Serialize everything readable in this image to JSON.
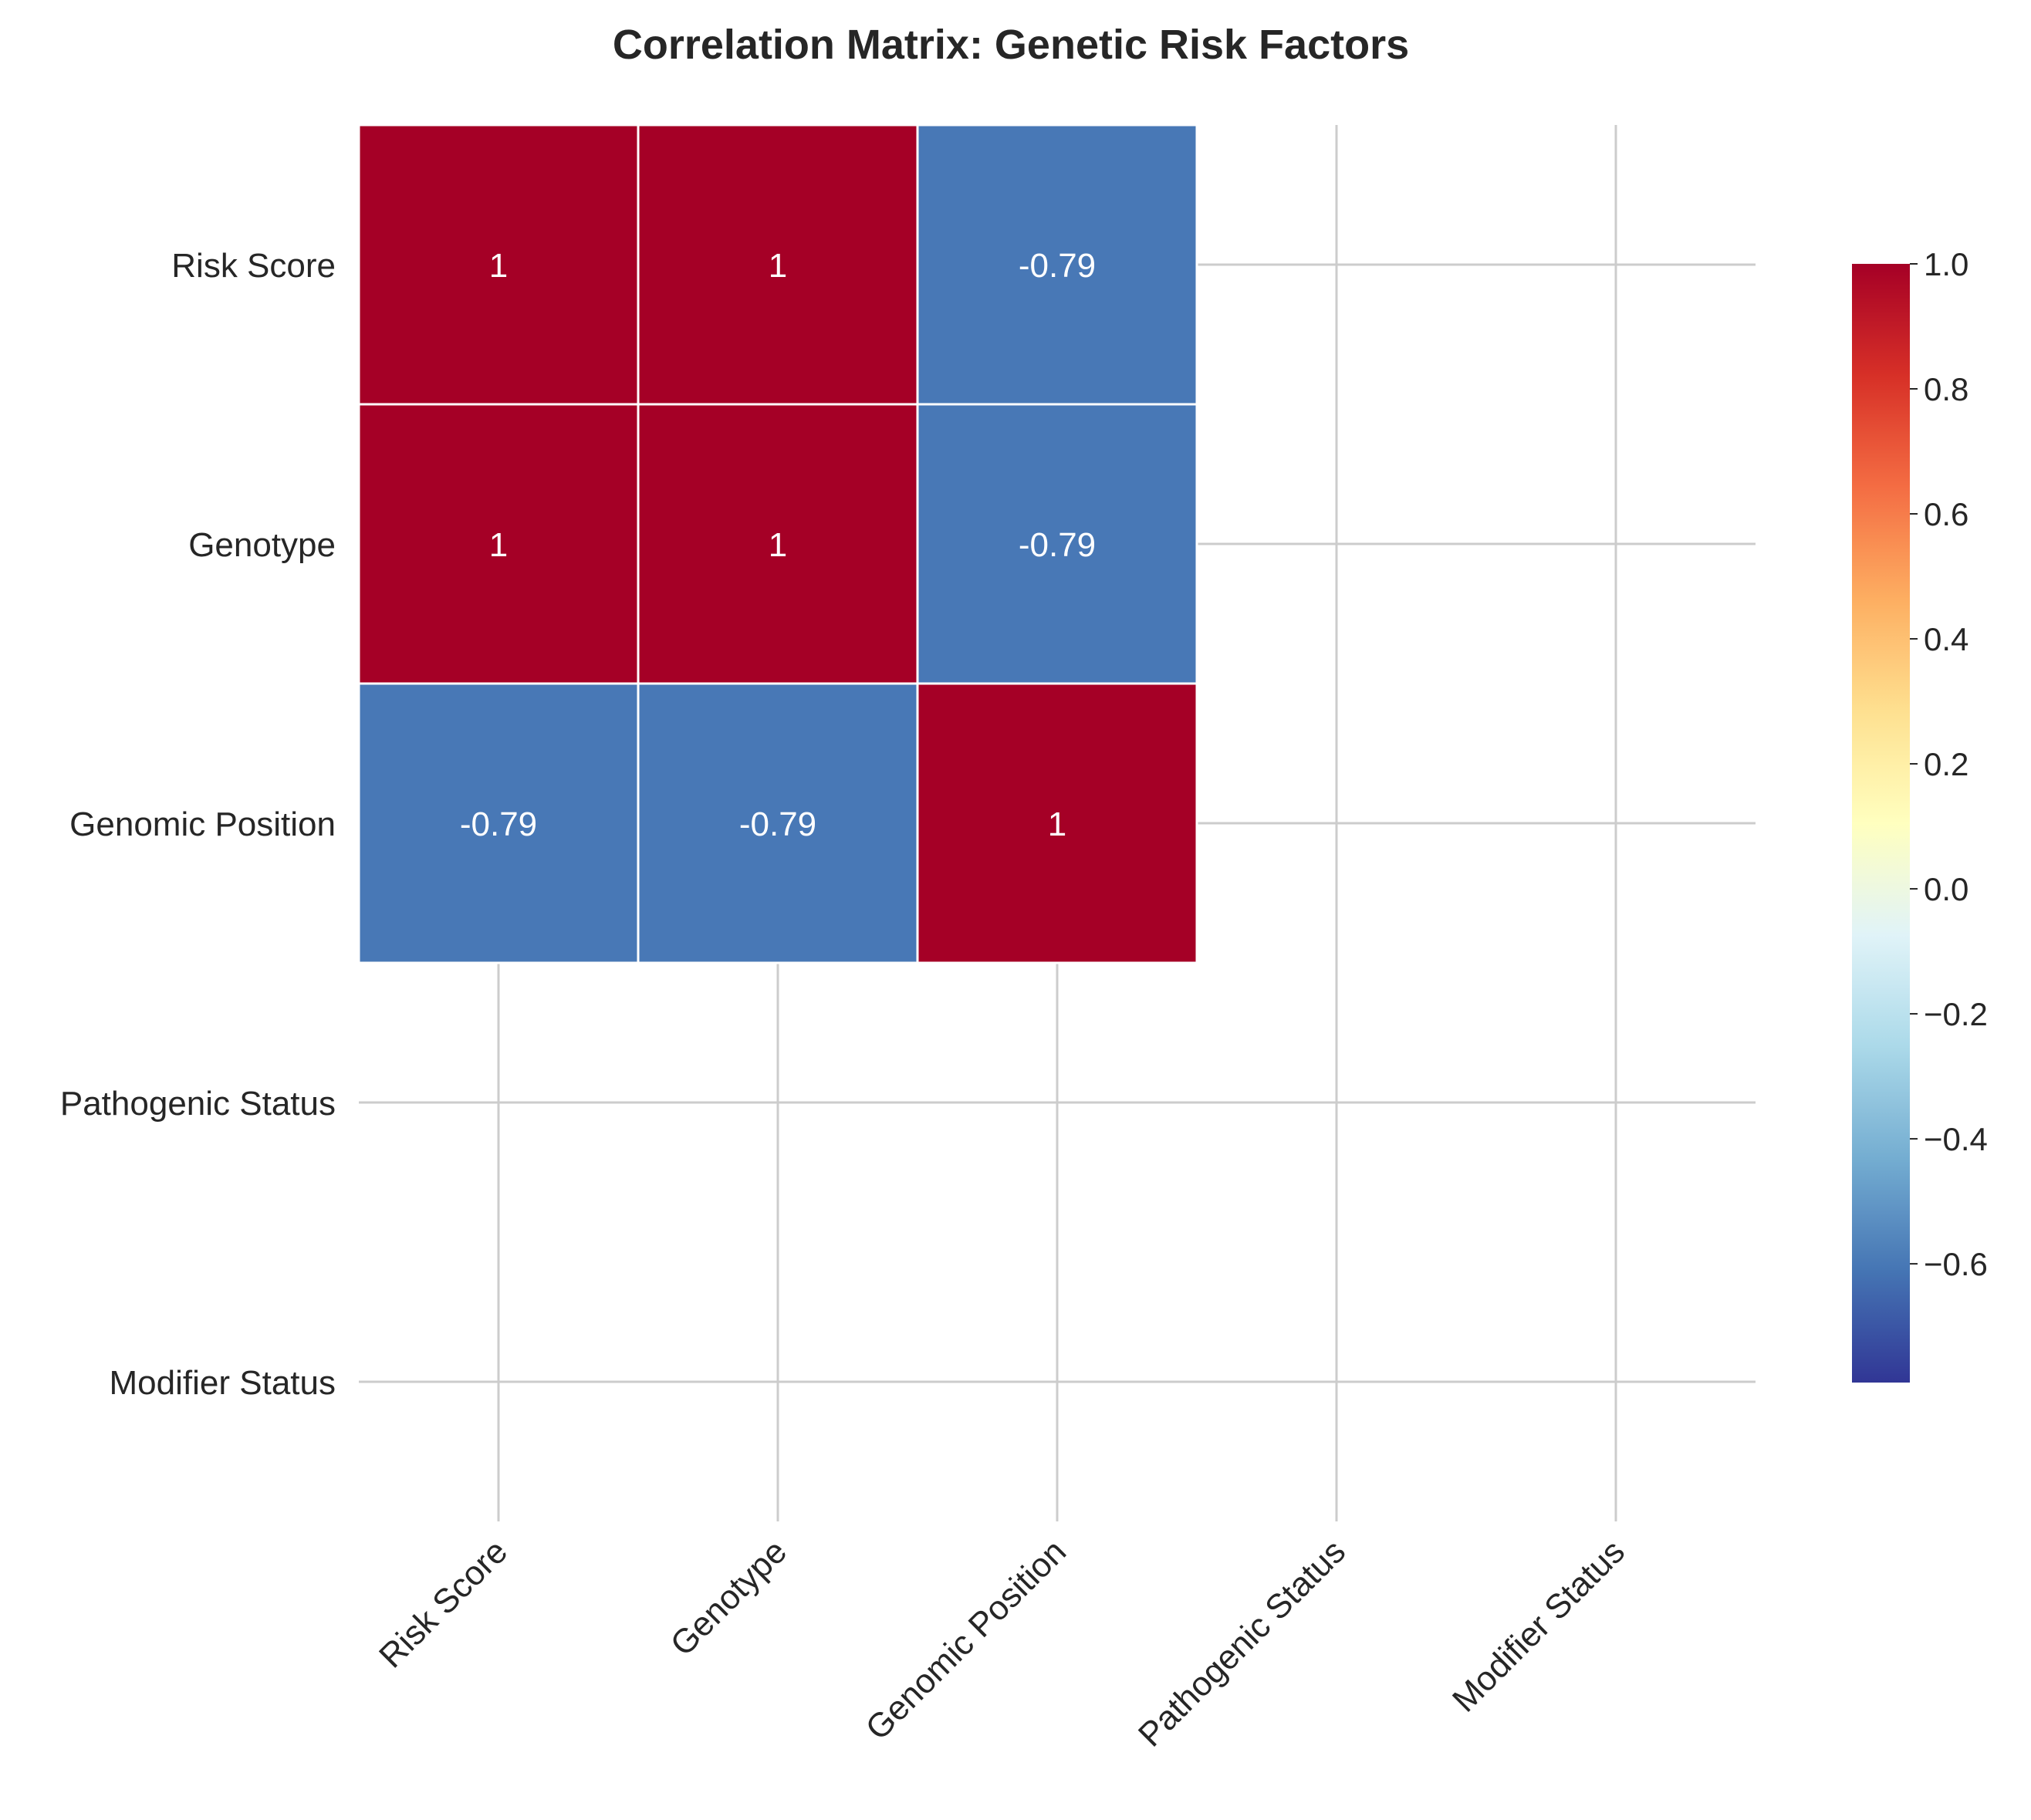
{
  "chart_data": {
    "type": "heatmap",
    "title": "Correlation Matrix: Genetic Risk Factors",
    "xlabel": "",
    "ylabel": "",
    "row_labels": [
      "Risk Score",
      "Genotype",
      "Genomic Position",
      "Pathogenic Status",
      "Modifier Status"
    ],
    "col_labels": [
      "Risk Score",
      "Genotype",
      "Genomic Position",
      "Pathogenic Status",
      "Modifier Status"
    ],
    "values": [
      [
        1,
        1,
        -0.79,
        null,
        null
      ],
      [
        1,
        1,
        -0.79,
        null,
        null
      ],
      [
        -0.79,
        -0.79,
        1,
        null,
        null
      ],
      [
        null,
        null,
        null,
        null,
        null
      ],
      [
        null,
        null,
        null,
        null,
        null
      ]
    ],
    "cell_labels": [
      [
        "1",
        "1",
        "-0.79",
        "",
        ""
      ],
      [
        "1",
        "1",
        "-0.79",
        "",
        ""
      ],
      [
        "-0.79",
        "-0.79",
        "1",
        "",
        ""
      ],
      [
        "",
        "",
        "",
        "",
        ""
      ],
      [
        "",
        "",
        "",
        "",
        ""
      ]
    ],
    "colorbar": {
      "colormap": "RdYlBu_r",
      "vmin": -0.79,
      "vmax": 1.0,
      "ticks": [
        1.0,
        0.8,
        0.6,
        0.4,
        0.2,
        0.0,
        -0.2,
        -0.4,
        -0.6
      ],
      "tick_labels": [
        "1.0",
        "0.8",
        "0.6",
        "0.4",
        "0.2",
        "0.0",
        "−0.2",
        "−0.4",
        "−0.6"
      ],
      "stops": [
        "#313695",
        "#4575b4",
        "#74add1",
        "#abd9e9",
        "#e0f3f8",
        "#ffffbf",
        "#fee090",
        "#fdae61",
        "#f46d43",
        "#d73027",
        "#a50026"
      ]
    },
    "grid": true,
    "colors": {
      "positive_cell": "#a50026",
      "negative_cell": "#4878b6",
      "grid_line": "#cccccc",
      "cell_border": "#ffffff"
    }
  }
}
